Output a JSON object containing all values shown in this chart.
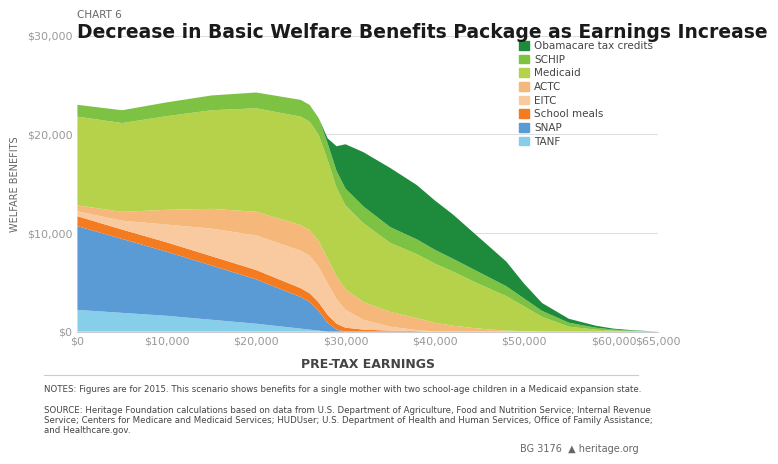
{
  "chart_label": "CHART 6",
  "title": "Decrease in Basic Welfare Benefits Package as Earnings Increase",
  "ylabel": "WELFARE BENEFITS",
  "xlabel": "PRE-TAX EARNINGS",
  "ylim": [
    0,
    30000
  ],
  "xlim": [
    0,
    65000
  ],
  "yticks": [
    0,
    10000,
    20000,
    30000
  ],
  "xticks": [
    0,
    10000,
    20000,
    30000,
    40000,
    50000,
    60000,
    65000
  ],
  "xtick_labels": [
    "$0",
    "$10,000",
    "$20,000",
    "$30,000",
    "$40,000",
    "$50,000",
    "$60,000",
    "$65,000"
  ],
  "ytick_labels": [
    "$0",
    "$10,000",
    "$20,000",
    "$30,000"
  ],
  "x": [
    0,
    5000,
    10000,
    15000,
    20000,
    25000,
    26000,
    27000,
    28000,
    29000,
    30000,
    32000,
    35000,
    38000,
    40000,
    42000,
    45000,
    48000,
    50000,
    52000,
    55000,
    58000,
    60000,
    62000,
    65000
  ],
  "series": {
    "TANF": [
      2200,
      1900,
      1600,
      1200,
      800,
      300,
      200,
      100,
      0,
      0,
      0,
      0,
      0,
      0,
      0,
      0,
      0,
      0,
      0,
      0,
      0,
      0,
      0,
      0,
      0
    ],
    "SNAP": [
      8500,
      7500,
      6500,
      5500,
      4500,
      3200,
      2800,
      2000,
      900,
      200,
      0,
      0,
      0,
      0,
      0,
      0,
      0,
      0,
      0,
      0,
      0,
      0,
      0,
      0,
      0
    ],
    "School meals": [
      1000,
      950,
      950,
      950,
      950,
      900,
      880,
      860,
      800,
      600,
      400,
      200,
      100,
      50,
      0,
      0,
      0,
      0,
      0,
      0,
      0,
      0,
      0,
      0,
      0
    ],
    "EITC": [
      500,
      900,
      1800,
      2800,
      3500,
      3800,
      3800,
      3600,
      3200,
      2500,
      1800,
      1000,
      400,
      100,
      0,
      0,
      0,
      0,
      0,
      0,
      0,
      0,
      0,
      0,
      0
    ],
    "ACTC": [
      600,
      900,
      1500,
      2000,
      2400,
      2600,
      2600,
      2600,
      2500,
      2300,
      2100,
      1800,
      1500,
      1200,
      900,
      600,
      300,
      100,
      50,
      0,
      0,
      0,
      0,
      0,
      0
    ],
    "Medicaid": [
      9000,
      9000,
      9500,
      10000,
      10500,
      11000,
      11000,
      10800,
      10000,
      9000,
      8500,
      8000,
      7000,
      6500,
      6000,
      5500,
      4500,
      3500,
      2500,
      1500,
      500,
      200,
      100,
      50,
      0
    ],
    "SCHIP": [
      1200,
      1300,
      1400,
      1500,
      1600,
      1700,
      1700,
      1700,
      1700,
      1700,
      1700,
      1700,
      1600,
      1500,
      1400,
      1300,
      1200,
      1000,
      800,
      600,
      400,
      200,
      100,
      50,
      0
    ],
    "Obamacare tax credits": [
      0,
      0,
      0,
      0,
      0,
      0,
      0,
      0,
      500,
      2500,
      4500,
      5500,
      6000,
      5500,
      5000,
      4500,
      3500,
      2500,
      1500,
      800,
      400,
      200,
      100,
      50,
      0
    ]
  },
  "colors": {
    "TANF": "#87CEEB",
    "SNAP": "#5B9BD5",
    "School meals": "#F47B20",
    "EITC": "#F9C9A0",
    "ACTC": "#F5B87A",
    "Medicaid": "#B5D24A",
    "SCHIP": "#7DC242",
    "Obamacare tax credits": "#1E8B3C"
  },
  "legend_order": [
    "Obamacare tax credits",
    "SCHIP",
    "Medicaid",
    "ACTC",
    "EITC",
    "School meals",
    "SNAP",
    "TANF"
  ],
  "background_color": "#ffffff",
  "notes": "NOTES: Figures are for 2015. This scenario shows benefits for a single mother with two school-age children in a Medicaid expansion state.",
  "source": "SOURCE: Heritage Foundation calculations based on data from U.S. Department of Agriculture, Food and Nutrition Service; Internal Revenue\nService; Centers for Medicare and Medicaid Services; HUDUser; U.S. Department of Health and Human Services, Office of Family Assistance;\nand Healthcare.gov.",
  "footer_right": "BG 3176  ▲ heritage.org"
}
